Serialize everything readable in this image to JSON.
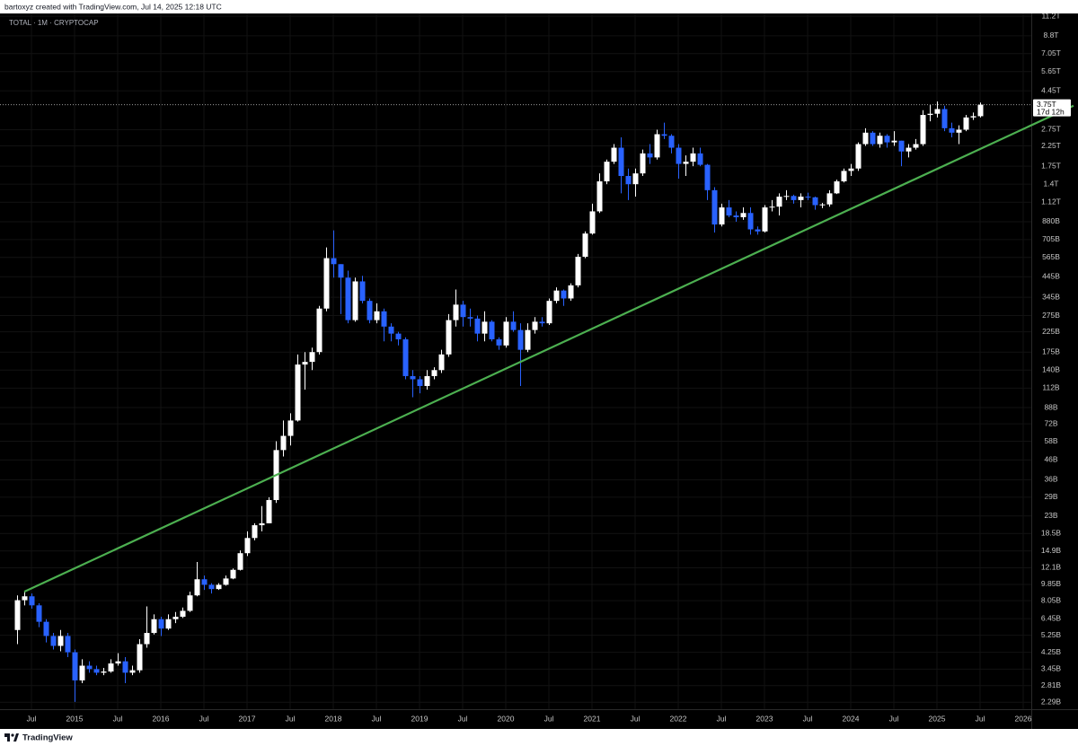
{
  "header": "bartoxyz created with TradingView.com, Jul 14, 2025 12:18 UTC",
  "footer": "TradingView",
  "chart_data": {
    "type": "candlestick",
    "title": "TOTAL · 1M · CRYPTOCAP",
    "log_scale": true,
    "grid": true,
    "up_color": "#ffffff",
    "down_color": "#2962ff",
    "xlim": [
      "2014-02",
      "2026-02"
    ],
    "xticks": [
      {
        "value": "2014-07",
        "label": "Jul"
      },
      {
        "value": "2015-01",
        "label": "2015"
      },
      {
        "value": "2015-07",
        "label": "Jul"
      },
      {
        "value": "2016-01",
        "label": "2016"
      },
      {
        "value": "2016-07",
        "label": "Jul"
      },
      {
        "value": "2017-01",
        "label": "2017"
      },
      {
        "value": "2017-07",
        "label": "Jul"
      },
      {
        "value": "2018-01",
        "label": "2018"
      },
      {
        "value": "2018-07",
        "label": "Jul"
      },
      {
        "value": "2019-01",
        "label": "2019"
      },
      {
        "value": "2019-07",
        "label": "Jul"
      },
      {
        "value": "2020-01",
        "label": "2020"
      },
      {
        "value": "2020-07",
        "label": "Jul"
      },
      {
        "value": "2021-01",
        "label": "2021"
      },
      {
        "value": "2021-07",
        "label": "Jul"
      },
      {
        "value": "2022-01",
        "label": "2022"
      },
      {
        "value": "2022-07",
        "label": "Jul"
      },
      {
        "value": "2023-01",
        "label": "2023"
      },
      {
        "value": "2023-07",
        "label": "Jul"
      },
      {
        "value": "2024-01",
        "label": "2024"
      },
      {
        "value": "2024-07",
        "label": "Jul"
      },
      {
        "value": "2025-01",
        "label": "2025"
      },
      {
        "value": "2025-07",
        "label": "Jul"
      },
      {
        "value": "2026-01",
        "label": "2026"
      }
    ],
    "ylim": [
      2100000000.0,
      11600000000000.0
    ],
    "yticks": [
      {
        "value": 11200000000000.0,
        "label": "11.2T"
      },
      {
        "value": 8800000000000.0,
        "label": "8.8T"
      },
      {
        "value": 7050000000000.0,
        "label": "7.05T"
      },
      {
        "value": 5650000000000.0,
        "label": "5.65T"
      },
      {
        "value": 4450000000000.0,
        "label": "4.45T"
      },
      {
        "value": 2750000000000.0,
        "label": "2.75T"
      },
      {
        "value": 2250000000000.0,
        "label": "2.25T"
      },
      {
        "value": 1750000000000.0,
        "label": "1.75T"
      },
      {
        "value": 1400000000000.0,
        "label": "1.4T"
      },
      {
        "value": 1120000000000.0,
        "label": "1.12T"
      },
      {
        "value": 880000000000.0,
        "label": "880B"
      },
      {
        "value": 705000000000.0,
        "label": "705B"
      },
      {
        "value": 565000000000.0,
        "label": "565B"
      },
      {
        "value": 445000000000.0,
        "label": "445B"
      },
      {
        "value": 345000000000.0,
        "label": "345B"
      },
      {
        "value": 275000000000.0,
        "label": "275B"
      },
      {
        "value": 225000000000.0,
        "label": "225B"
      },
      {
        "value": 175000000000.0,
        "label": "175B"
      },
      {
        "value": 140000000000.0,
        "label": "140B"
      },
      {
        "value": 112000000000.0,
        "label": "112B"
      },
      {
        "value": 88000000000.0,
        "label": "88B"
      },
      {
        "value": 72000000000.0,
        "label": "72B"
      },
      {
        "value": 58000000000.0,
        "label": "58B"
      },
      {
        "value": 46000000000.0,
        "label": "46B"
      },
      {
        "value": 36000000000.0,
        "label": "36B"
      },
      {
        "value": 29000000000.0,
        "label": "29B"
      },
      {
        "value": 23000000000.0,
        "label": "23B"
      },
      {
        "value": 18500000000.0,
        "label": "18.5B"
      },
      {
        "value": 14900000000.0,
        "label": "14.9B"
      },
      {
        "value": 12100000000.0,
        "label": "12.1B"
      },
      {
        "value": 9850000000.0,
        "label": "9.85B"
      },
      {
        "value": 8050000000.0,
        "label": "8.05B"
      },
      {
        "value": 6450000000.0,
        "label": "6.45B"
      },
      {
        "value": 5250000000.0,
        "label": "5.25B"
      },
      {
        "value": 4250000000.0,
        "label": "4.25B"
      },
      {
        "value": 3450000000.0,
        "label": "3.45B"
      },
      {
        "value": 2810000000.0,
        "label": "2.81B"
      },
      {
        "value": 2290000000.0,
        "label": "2.29B"
      }
    ],
    "x": [
      "2014-05",
      "2014-06",
      "2014-07",
      "2014-08",
      "2014-09",
      "2014-10",
      "2014-11",
      "2014-12",
      "2015-01",
      "2015-02",
      "2015-03",
      "2015-04",
      "2015-05",
      "2015-06",
      "2015-07",
      "2015-08",
      "2015-09",
      "2015-10",
      "2015-11",
      "2015-12",
      "2016-01",
      "2016-02",
      "2016-03",
      "2016-04",
      "2016-05",
      "2016-06",
      "2016-07",
      "2016-08",
      "2016-09",
      "2016-10",
      "2016-11",
      "2016-12",
      "2017-01",
      "2017-02",
      "2017-03",
      "2017-04",
      "2017-05",
      "2017-06",
      "2017-07",
      "2017-08",
      "2017-09",
      "2017-10",
      "2017-11",
      "2017-12",
      "2018-01",
      "2018-02",
      "2018-03",
      "2018-04",
      "2018-05",
      "2018-06",
      "2018-07",
      "2018-08",
      "2018-09",
      "2018-10",
      "2018-11",
      "2018-12",
      "2019-01",
      "2019-02",
      "2019-03",
      "2019-04",
      "2019-05",
      "2019-06",
      "2019-07",
      "2019-08",
      "2019-09",
      "2019-10",
      "2019-11",
      "2019-12",
      "2020-01",
      "2020-02",
      "2020-03",
      "2020-04",
      "2020-05",
      "2020-06",
      "2020-07",
      "2020-08",
      "2020-09",
      "2020-10",
      "2020-11",
      "2020-12",
      "2021-01",
      "2021-02",
      "2021-03",
      "2021-04",
      "2021-05",
      "2021-06",
      "2021-07",
      "2021-08",
      "2021-09",
      "2021-10",
      "2021-11",
      "2021-12",
      "2022-01",
      "2022-02",
      "2022-03",
      "2022-04",
      "2022-05",
      "2022-06",
      "2022-07",
      "2022-08",
      "2022-09",
      "2022-10",
      "2022-11",
      "2022-12",
      "2023-01",
      "2023-02",
      "2023-03",
      "2023-04",
      "2023-05",
      "2023-06",
      "2023-07",
      "2023-08",
      "2023-09",
      "2023-10",
      "2023-11",
      "2023-12",
      "2024-01",
      "2024-02",
      "2024-03",
      "2024-04",
      "2024-05",
      "2024-06",
      "2024-07",
      "2024-08",
      "2024-09",
      "2024-10",
      "2024-11",
      "2024-12",
      "2025-01",
      "2025-02",
      "2025-03",
      "2025-04",
      "2025-05",
      "2025-06",
      "2025-07"
    ],
    "open": [
      5600000000.0,
      8100000000.0,
      8500000000.0,
      7600000000.0,
      6200000000.0,
      5200000000.0,
      4600000000.0,
      5200000000.0,
      4250000000.0,
      3000000000.0,
      3600000000.0,
      3450000000.0,
      3300000000.0,
      3350000000.0,
      3700000000.0,
      3800000000.0,
      3300000000.0,
      3400000000.0,
      4700000000.0,
      5400000000.0,
      6400000000.0,
      5700000000.0,
      6400000000.0,
      6600000000.0,
      7100000000.0,
      8600000000.0,
      10500000000.0,
      9800000000.0,
      9300000000.0,
      9800000000.0,
      10600000000.0,
      11800000000.0,
      14500000000.0,
      17500000000.0,
      20500000000.0,
      21000000000.0,
      28000000000.0,
      52000000000.0,
      62000000000.0,
      75000000000.0,
      150000000000.0,
      155000000000.0,
      175000000000.0,
      300000000000.0,
      560000000000.0,
      520000000000.0,
      440000000000.0,
      260000000000.0,
      420000000000.0,
      330000000000.0,
      260000000000.0,
      290000000000.0,
      240000000000.0,
      220000000000.0,
      205000000000.0,
      130000000000.0,
      125000000000.0,
      115000000000.0,
      130000000000.0,
      140000000000.0,
      170000000000.0,
      260000000000.0,
      315000000000.0,
      270000000000.0,
      265000000000.0,
      220000000000.0,
      255000000000.0,
      205000000000.0,
      190000000000.0,
      255000000000.0,
      230000000000.0,
      180000000000.0,
      230000000000.0,
      255000000000.0,
      250000000000.0,
      330000000000.0,
      375000000000.0,
      340000000000.0,
      400000000000.0,
      570000000000.0,
      760000000000.0,
      1000000000000.0,
      1450000000000.0,
      1850000000000.0,
      2200000000000.0,
      1550000000000.0,
      1400000000000.0,
      1600000000000.0,
      2050000000000.0,
      1950000000000.0,
      2600000000000.0,
      2550000000000.0,
      2200000000000.0,
      1800000000000.0,
      1850000000000.0,
      2050000000000.0,
      1780000000000.0,
      1300000000000.0,
      850000000000.0,
      1050000000000.0,
      950000000000.0,
      930000000000.0,
      980000000000.0,
      800000000000.0,
      780000000000.0,
      1050000000000.0,
      1060000000000.0,
      1200000000000.0,
      1210000000000.0,
      1150000000000.0,
      1200000000000.0,
      1190000000000.0,
      1080000000000.0,
      1090000000000.0,
      1250000000000.0,
      1450000000000.0,
      1650000000000.0,
      1700000000000.0,
      2300000000000.0,
      2650000000000.0,
      2300000000000.0,
      2550000000000.0,
      2350000000000.0,
      2400000000000.0,
      2100000000000.0,
      2200000000000.0,
      2300000000000.0,
      3300000000000.0,
      3350000000000.0,
      3550000000000.0,
      2800000000000.0,
      2650000000000.0,
      2750000000000.0,
      3200000000000.0,
      3250000000000.0
    ],
    "high": [
      8600000000.0,
      9000000000.0,
      8800000000.0,
      7800000000.0,
      6400000000.0,
      5400000000.0,
      5600000000.0,
      5400000000.0,
      4400000000.0,
      3900000000.0,
      3800000000.0,
      3600000000.0,
      3500000000.0,
      3900000000.0,
      4200000000.0,
      4000000000.0,
      3600000000.0,
      5000000000.0,
      7500000000.0,
      6800000000.0,
      6600000000.0,
      6800000000.0,
      7000000000.0,
      7400000000.0,
      9000000000.0,
      13000000000.0,
      11000000000.0,
      10000000000.0,
      10000000000.0,
      11000000000.0,
      12000000000.0,
      15000000000.0,
      19000000000.0,
      21000000000.0,
      26000000000.0,
      29000000000.0,
      58000000000.0,
      75000000000.0,
      82000000000.0,
      170000000000.0,
      175000000000.0,
      185000000000.0,
      310000000000.0,
      640000000000.0,
      790000000000.0,
      520000000000.0,
      480000000000.0,
      440000000000.0,
      450000000000.0,
      340000000000.0,
      320000000000.0,
      300000000000.0,
      250000000000.0,
      225000000000.0,
      210000000000.0,
      140000000000.0,
      130000000000.0,
      140000000000.0,
      145000000000.0,
      180000000000.0,
      280000000000.0,
      380000000000.0,
      330000000000.0,
      300000000000.0,
      275000000000.0,
      290000000000.0,
      260000000000.0,
      210000000000.0,
      270000000000.0,
      290000000000.0,
      250000000000.0,
      250000000000.0,
      270000000000.0,
      270000000000.0,
      340000000000.0,
      390000000000.0,
      380000000000.0,
      410000000000.0,
      590000000000.0,
      780000000000.0,
      1100000000000.0,
      1600000000000.0,
      1900000000000.0,
      2300000000000.0,
      2500000000000.0,
      1700000000000.0,
      1700000000000.0,
      2150000000000.0,
      2300000000000.0,
      2750000000000.0,
      3000000000000.0,
      2600000000000.0,
      2300000000000.0,
      2000000000000.0,
      2200000000000.0,
      2200000000000.0,
      1800000000000.0,
      1350000000000.0,
      1100000000000.0,
      1150000000000.0,
      1000000000000.0,
      1050000000000.0,
      1050000000000.0,
      830000000000.0,
      1080000000000.0,
      1150000000000.0,
      1250000000000.0,
      1300000000000.0,
      1230000000000.0,
      1250000000000.0,
      1260000000000.0,
      1200000000000.0,
      1110000000000.0,
      1300000000000.0,
      1480000000000.0,
      1700000000000.0,
      1800000000000.0,
      2350000000000.0,
      2800000000000.0,
      2700000000000.0,
      2650000000000.0,
      2600000000000.0,
      2700000000000.0,
      2400000000000.0,
      2300000000000.0,
      2450000000000.0,
      3500000000000.0,
      3750000000000.0,
      3900000000000.0,
      3700000000000.0,
      3000000000000.0,
      2900000000000.0,
      3300000000000.0,
      3400000000000.0,
      3850000000000.0
    ],
    "low": [
      4700000000.0,
      7600000000.0,
      7300000000.0,
      5800000000.0,
      4800000000.0,
      4400000000.0,
      4300000000.0,
      4000000000.0,
      2300000000.0,
      2900000000.0,
      3300000000.0,
      3200000000.0,
      3200000000.0,
      3300000000.0,
      3600000000.0,
      2900000000.0,
      3200000000.0,
      3300000000.0,
      4500000000.0,
      5300000000.0,
      5200000000.0,
      5600000000.0,
      6100000000.0,
      6500000000.0,
      7000000000.0,
      8500000000.0,
      9200000000.0,
      8800000000.0,
      9200000000.0,
      9700000000.0,
      10500000000.0,
      11700000000.0,
      14000000000.0,
      17000000000.0,
      19000000000.0,
      21000000000.0,
      27000000000.0,
      48000000000.0,
      55000000000.0,
      74000000000.0,
      110000000000.0,
      140000000000.0,
      170000000000.0,
      290000000000.0,
      440000000000.0,
      280000000000.0,
      250000000000.0,
      255000000000.0,
      320000000000.0,
      250000000000.0,
      250000000000.0,
      200000000000.0,
      200000000000.0,
      190000000000.0,
      125000000000.0,
      100000000000.0,
      105000000000.0,
      110000000000.0,
      125000000000.0,
      135000000000.0,
      165000000000.0,
      240000000000.0,
      240000000000.0,
      240000000000.0,
      200000000000.0,
      200000000000.0,
      200000000000.0,
      180000000000.0,
      185000000000.0,
      225000000000.0,
      115000000000.0,
      175000000000.0,
      220000000000.0,
      240000000000.0,
      245000000000.0,
      320000000000.0,
      310000000000.0,
      330000000000.0,
      390000000000.0,
      560000000000.0,
      750000000000.0,
      980000000000.0,
      1400000000000.0,
      1800000000000.0,
      1250000000000.0,
      1150000000000.0,
      1200000000000.0,
      1550000000000.0,
      1800000000000.0,
      1900000000000.0,
      2450000000000.0,
      2050000000000.0,
      1500000000000.0,
      1550000000000.0,
      1750000000000.0,
      1750000000000.0,
      1150000000000.0,
      770000000000.0,
      830000000000.0,
      930000000000.0,
      880000000000.0,
      900000000000.0,
      750000000000.0,
      750000000000.0,
      770000000000.0,
      1000000000000.0,
      950000000000.0,
      1150000000000.0,
      1100000000000.0,
      1050000000000.0,
      1150000000000.0,
      1020000000000.0,
      1040000000000.0,
      1060000000000.0,
      1240000000000.0,
      1430000000000.0,
      1550000000000.0,
      1650000000000.0,
      2250000000000.0,
      2250000000000.0,
      2200000000000.0,
      2200000000000.0,
      2250000000000.0,
      1750000000000.0,
      1950000000000.0,
      2150000000000.0,
      2250000000000.0,
      3050000000000.0,
      3200000000000.0,
      2700000000000.0,
      2500000000000.0,
      2300000000000.0,
      2700000000000.0,
      3100000000000.0,
      3200000000000.0
    ],
    "close": [
      8100000000.0,
      8500000000.0,
      7600000000.0,
      6200000000.0,
      5200000000.0,
      4600000000.0,
      5200000000.0,
      4250000000.0,
      3000000000.0,
      3600000000.0,
      3450000000.0,
      3300000000.0,
      3350000000.0,
      3700000000.0,
      3800000000.0,
      3300000000.0,
      3400000000.0,
      4700000000.0,
      5400000000.0,
      6400000000.0,
      5700000000.0,
      6400000000.0,
      6600000000.0,
      7100000000.0,
      8600000000.0,
      10500000000.0,
      9800000000.0,
      9300000000.0,
      9800000000.0,
      10600000000.0,
      11800000000.0,
      14500000000.0,
      17500000000.0,
      20500000000.0,
      21000000000.0,
      28000000000.0,
      52000000000.0,
      62000000000.0,
      75000000000.0,
      150000000000.0,
      155000000000.0,
      175000000000.0,
      300000000000.0,
      560000000000.0,
      520000000000.0,
      440000000000.0,
      260000000000.0,
      420000000000.0,
      330000000000.0,
      260000000000.0,
      290000000000.0,
      240000000000.0,
      220000000000.0,
      205000000000.0,
      130000000000.0,
      125000000000.0,
      115000000000.0,
      130000000000.0,
      140000000000.0,
      170000000000.0,
      260000000000.0,
      315000000000.0,
      270000000000.0,
      265000000000.0,
      220000000000.0,
      255000000000.0,
      205000000000.0,
      190000000000.0,
      255000000000.0,
      230000000000.0,
      180000000000.0,
      230000000000.0,
      255000000000.0,
      250000000000.0,
      330000000000.0,
      375000000000.0,
      340000000000.0,
      400000000000.0,
      570000000000.0,
      760000000000.0,
      1000000000000.0,
      1450000000000.0,
      1850000000000.0,
      2200000000000.0,
      1550000000000.0,
      1400000000000.0,
      1600000000000.0,
      2050000000000.0,
      1950000000000.0,
      2600000000000.0,
      2550000000000.0,
      2200000000000.0,
      1800000000000.0,
      1850000000000.0,
      2050000000000.0,
      1780000000000.0,
      1300000000000.0,
      850000000000.0,
      1050000000000.0,
      950000000000.0,
      930000000000.0,
      980000000000.0,
      800000000000.0,
      780000000000.0,
      1050000000000.0,
      1060000000000.0,
      1200000000000.0,
      1210000000000.0,
      1150000000000.0,
      1200000000000.0,
      1190000000000.0,
      1080000000000.0,
      1090000000000.0,
      1250000000000.0,
      1450000000000.0,
      1650000000000.0,
      1700000000000.0,
      2300000000000.0,
      2650000000000.0,
      2300000000000.0,
      2550000000000.0,
      2350000000000.0,
      2400000000000.0,
      2100000000000.0,
      2200000000000.0,
      2300000000000.0,
      3300000000000.0,
      3350000000000.0,
      3550000000000.0,
      2800000000000.0,
      2650000000000.0,
      2750000000000.0,
      3200000000000.0,
      3250000000000.0,
      3750000000000.0
    ],
    "trendline": {
      "x": [
        "2014-06",
        "2026-08"
      ],
      "values": [
        9000000000.0,
        3700000000000.0
      ],
      "color": "#4caf50"
    },
    "price_label": "3.75T",
    "countdown": "17d 12h"
  }
}
